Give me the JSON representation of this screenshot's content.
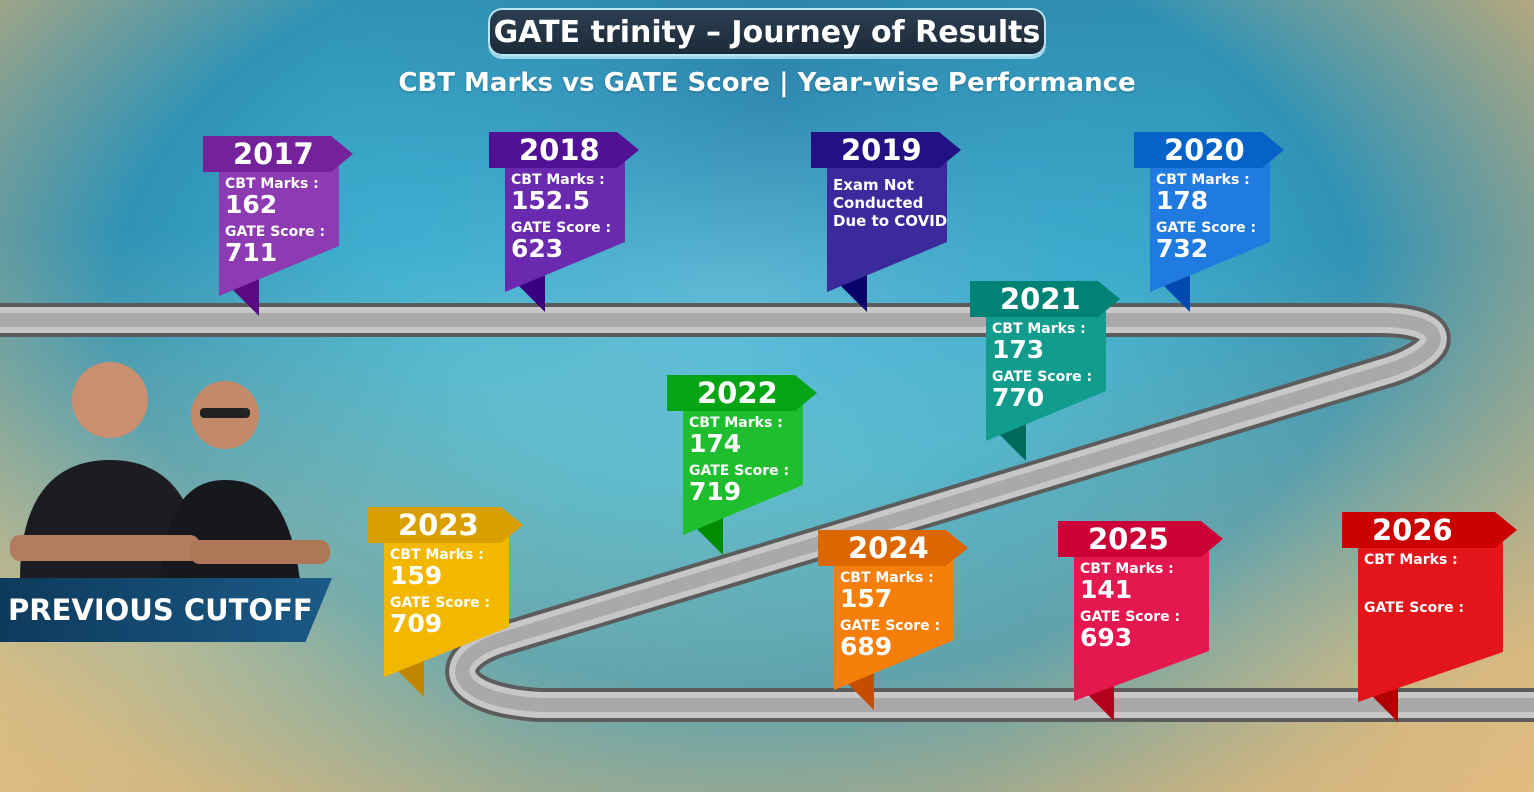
{
  "header": {
    "title": "GATE trinity – Journey of Results",
    "subtitle": "CBT Marks vs GATE Score | Year-wise Performance"
  },
  "badge": {
    "label": "PREVIOUS CUTOFF"
  },
  "milestones": [
    {
      "year": "2017",
      "cbt_label": "CBT Marks :",
      "cbt": "162",
      "gate_label": "GATE Score :",
      "gate": "711",
      "color": "#8d3bb2"
    },
    {
      "year": "2018",
      "cbt_label": "CBT Marks :",
      "cbt": "152.5",
      "gate_label": "GATE Score :",
      "gate": "623",
      "color": "#6a2ab0"
    },
    {
      "year": "2019",
      "note": [
        "Exam Not",
        "Conducted",
        "Due to COVID"
      ],
      "color": "#3b2a9c"
    },
    {
      "year": "2020",
      "cbt_label": "CBT Marks :",
      "cbt": "178",
      "gate_label": "GATE Score :",
      "gate": "732",
      "color": "#1f7be0"
    },
    {
      "year": "2021",
      "cbt_label": "CBT Marks :",
      "cbt": "173",
      "gate_label": "GATE Score :",
      "gate": "770",
      "color": "#119c8e"
    },
    {
      "year": "2022",
      "cbt_label": "CBT Marks :",
      "cbt": "174",
      "gate_label": "GATE Score :",
      "gate": "719",
      "color": "#1fbe2f"
    },
    {
      "year": "2023",
      "cbt_label": "CBT Marks :",
      "cbt": "159",
      "gate_label": "GATE Score :",
      "gate": "709",
      "color": "#f2b800"
    },
    {
      "year": "2024",
      "cbt_label": "CBT Marks :",
      "cbt": "157",
      "gate_label": "GATE Score :",
      "gate": "689",
      "color": "#f57f0a"
    },
    {
      "year": "2025",
      "cbt_label": "CBT Marks :",
      "cbt": "141",
      "gate_label": "GATE Score :",
      "gate": "693",
      "color": "#e5174f"
    },
    {
      "year": "2026",
      "cbt_label": "CBT Marks :",
      "cbt": "",
      "gate_label": "GATE Score :",
      "gate": "",
      "color": "#e3141a"
    }
  ]
}
